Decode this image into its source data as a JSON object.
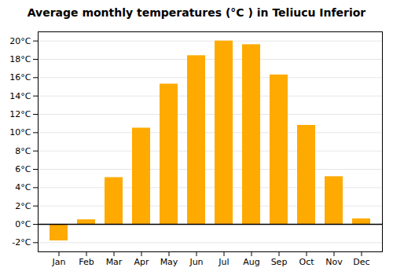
{
  "chart_data": {
    "type": "bar",
    "title": "Average monthly temperatures (°C ) in Teliucu Inferior",
    "categories": [
      "Jan",
      "Feb",
      "Mar",
      "Apr",
      "May",
      "Jun",
      "Jul",
      "Aug",
      "Sep",
      "Oct",
      "Nov",
      "Dec"
    ],
    "values": [
      -1.8,
      0.5,
      5.1,
      10.5,
      15.3,
      18.4,
      20.0,
      19.6,
      16.3,
      10.8,
      5.2,
      0.6
    ],
    "color": "#FFAA00",
    "ylim": [
      -3,
      21
    ],
    "yticks": [
      {
        "value": -2,
        "label": "-2°C"
      },
      {
        "value": 0,
        "label": "0°C"
      },
      {
        "value": 2,
        "label": "2°C"
      },
      {
        "value": 4,
        "label": "4°C"
      },
      {
        "value": 6,
        "label": "6°C"
      },
      {
        "value": 8,
        "label": "8°C"
      },
      {
        "value": 10,
        "label": "10°C"
      },
      {
        "value": 12,
        "label": "12°C"
      },
      {
        "value": 14,
        "label": "14°C"
      },
      {
        "value": 16,
        "label": "16°C"
      },
      {
        "value": 18,
        "label": "18°C"
      },
      {
        "value": 20,
        "label": "20°C"
      }
    ],
    "grid": true
  }
}
